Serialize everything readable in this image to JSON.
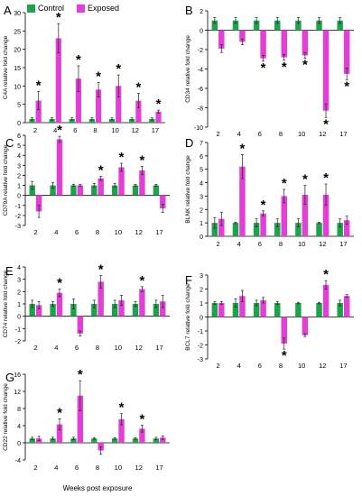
{
  "legend": {
    "control_label": "Control",
    "exposed_label": "Exposed",
    "control_color": "#1ea34a",
    "exposed_color": "#e23fd6"
  },
  "shared_xlabel": "Weeks post exposure",
  "chart_data": [
    {
      "panel": "A",
      "type": "bar",
      "ylabel": "C4A relative fold change",
      "categories": [
        "2",
        "4",
        "6",
        "8",
        "10",
        "12",
        "17"
      ],
      "ylim": [
        0,
        30
      ],
      "yticks": [
        0,
        5,
        10,
        15,
        20,
        25,
        30
      ],
      "tick_labels_on_axis": false,
      "series": [
        {
          "name": "Control",
          "values": [
            1,
            1,
            1,
            1,
            1,
            1,
            1
          ],
          "errors": [
            0.3,
            0.3,
            0.3,
            0.3,
            0.3,
            0.3,
            0.3
          ]
        },
        {
          "name": "Exposed",
          "values": [
            6,
            23,
            12,
            9,
            10,
            6,
            3
          ],
          "errors": [
            2.5,
            4,
            3.5,
            2,
            3,
            2,
            0.4
          ]
        }
      ],
      "significant": [
        true,
        true,
        true,
        true,
        true,
        true,
        true
      ]
    },
    {
      "panel": "B",
      "type": "bar",
      "ylabel": "CD34 relative fold change",
      "categories": [
        "2",
        "4",
        "6",
        "8",
        "10",
        "12",
        "17"
      ],
      "ylim": [
        -10,
        2
      ],
      "yticks": [
        -10,
        -8,
        -6,
        -4,
        -2,
        0,
        2
      ],
      "tick_labels_on_axis": true,
      "series": [
        {
          "name": "Control",
          "values": [
            1,
            1,
            1,
            1,
            1,
            1,
            1
          ],
          "errors": [
            0.3,
            0.3,
            0.3,
            0.3,
            0.3,
            0.3,
            0.3
          ]
        },
        {
          "name": "Exposed",
          "values": [
            -1.9,
            -1.2,
            -2.9,
            -2.8,
            -2.6,
            -8.3,
            -4.5
          ],
          "errors": [
            0.4,
            0.3,
            0.3,
            0.3,
            0.3,
            0.7,
            0.6
          ]
        }
      ],
      "significant": [
        false,
        false,
        true,
        true,
        true,
        true,
        true
      ]
    },
    {
      "panel": "C",
      "type": "bar",
      "ylabel": "CD79A relative fold change",
      "categories": [
        "2",
        "4",
        "6",
        "8",
        "10",
        "12",
        "17"
      ],
      "ylim": [
        -3,
        6
      ],
      "yticks": [
        -3,
        -2,
        -1,
        0,
        1,
        2,
        3,
        4,
        5,
        6
      ],
      "tick_labels_on_axis": true,
      "series": [
        {
          "name": "Control",
          "values": [
            1,
            1,
            1,
            1,
            1,
            1,
            1
          ],
          "errors": [
            0.4,
            0.3,
            0.1,
            0.2,
            0.2,
            0.1,
            0.1
          ]
        },
        {
          "name": "Exposed",
          "values": [
            -1.6,
            5.6,
            1,
            1.7,
            2.8,
            2.5,
            -1.3
          ],
          "errors": [
            0.6,
            0.3,
            0.1,
            0.2,
            0.4,
            0.4,
            0.4
          ]
        }
      ],
      "significant": [
        false,
        true,
        false,
        true,
        true,
        true,
        false
      ]
    },
    {
      "panel": "D",
      "type": "bar",
      "ylabel": "BLNK relative fold change",
      "categories": [
        "2",
        "4",
        "6",
        "8",
        "10",
        "12",
        "17"
      ],
      "ylim": [
        0,
        7
      ],
      "yticks": [
        0,
        1,
        2,
        3,
        4,
        5,
        6,
        7
      ],
      "tick_labels_on_axis": false,
      "series": [
        {
          "name": "Control",
          "values": [
            1,
            1,
            1,
            1,
            1,
            1,
            1
          ],
          "errors": [
            0.4,
            0.05,
            0.3,
            0.3,
            0.3,
            0.05,
            0.3
          ]
        },
        {
          "name": "Exposed",
          "values": [
            1.3,
            5.2,
            1.7,
            3,
            3.1,
            3.1,
            1.2
          ],
          "errors": [
            0.5,
            0.9,
            0.2,
            0.5,
            0.7,
            0.8,
            0.3
          ]
        }
      ],
      "significant": [
        false,
        true,
        true,
        true,
        true,
        true,
        false
      ]
    },
    {
      "panel": "E",
      "type": "bar",
      "ylabel": "CD74 relative fold change",
      "categories": [
        "2",
        "4",
        "6",
        "8",
        "10",
        "12",
        "17"
      ],
      "ylim": [
        -2,
        4
      ],
      "yticks": [
        -2,
        -1,
        0,
        1,
        2,
        3,
        4
      ],
      "tick_labels_on_axis": true,
      "series": [
        {
          "name": "Control",
          "values": [
            1,
            1,
            1,
            1,
            1,
            1,
            1
          ],
          "errors": [
            0.3,
            0.2,
            0.4,
            0.3,
            0.3,
            0.2,
            0.3
          ]
        },
        {
          "name": "Exposed",
          "values": [
            0.9,
            1.9,
            -1.4,
            2.8,
            1.3,
            2.2,
            1.2
          ],
          "errors": [
            0.3,
            0.3,
            0.2,
            0.5,
            0.4,
            0.2,
            0.5
          ]
        }
      ],
      "significant": [
        false,
        true,
        false,
        true,
        false,
        true,
        false
      ]
    },
    {
      "panel": "F",
      "type": "bar",
      "ylabel": "BCL7 relative fold change",
      "categories": [
        "2",
        "4",
        "6",
        "8",
        "10",
        "12",
        "17"
      ],
      "ylim": [
        -3,
        3
      ],
      "yticks": [
        -3,
        -2,
        -1,
        0,
        1,
        2,
        3
      ],
      "tick_labels_on_axis": true,
      "series": [
        {
          "name": "Control",
          "values": [
            1,
            1,
            1,
            1,
            1,
            1,
            1
          ],
          "errors": [
            0.1,
            0.3,
            0.2,
            0.1,
            0.05,
            0.05,
            0.2
          ]
        },
        {
          "name": "Exposed",
          "values": [
            1,
            1.5,
            1.2,
            -1.9,
            -1.3,
            2.3,
            1.5
          ],
          "errors": [
            0.1,
            0.4,
            0.2,
            0.4,
            0.1,
            0.3,
            0.1
          ]
        }
      ],
      "significant": [
        false,
        false,
        false,
        true,
        false,
        true,
        false
      ]
    },
    {
      "panel": "G",
      "type": "bar",
      "ylabel": "CD22 relative fold change",
      "categories": [
        "2",
        "4",
        "6",
        "8",
        "10",
        "12",
        "17"
      ],
      "ylim": [
        -4,
        16
      ],
      "yticks": [
        -4,
        0,
        4,
        8,
        12,
        16
      ],
      "tick_labels_on_axis": false,
      "series": [
        {
          "name": "Control",
          "values": [
            1,
            1,
            1,
            1,
            1,
            1,
            1
          ],
          "errors": [
            0.3,
            0.3,
            0.3,
            0.2,
            0.2,
            0.2,
            0.3
          ]
        },
        {
          "name": "Exposed",
          "values": [
            1,
            4.3,
            11,
            -1.8,
            5.5,
            3.3,
            1.2
          ],
          "errors": [
            0.5,
            1.3,
            3.5,
            0.9,
            1.3,
            0.8,
            0.4
          ]
        }
      ],
      "significant": [
        false,
        true,
        true,
        false,
        true,
        true,
        false
      ]
    }
  ]
}
